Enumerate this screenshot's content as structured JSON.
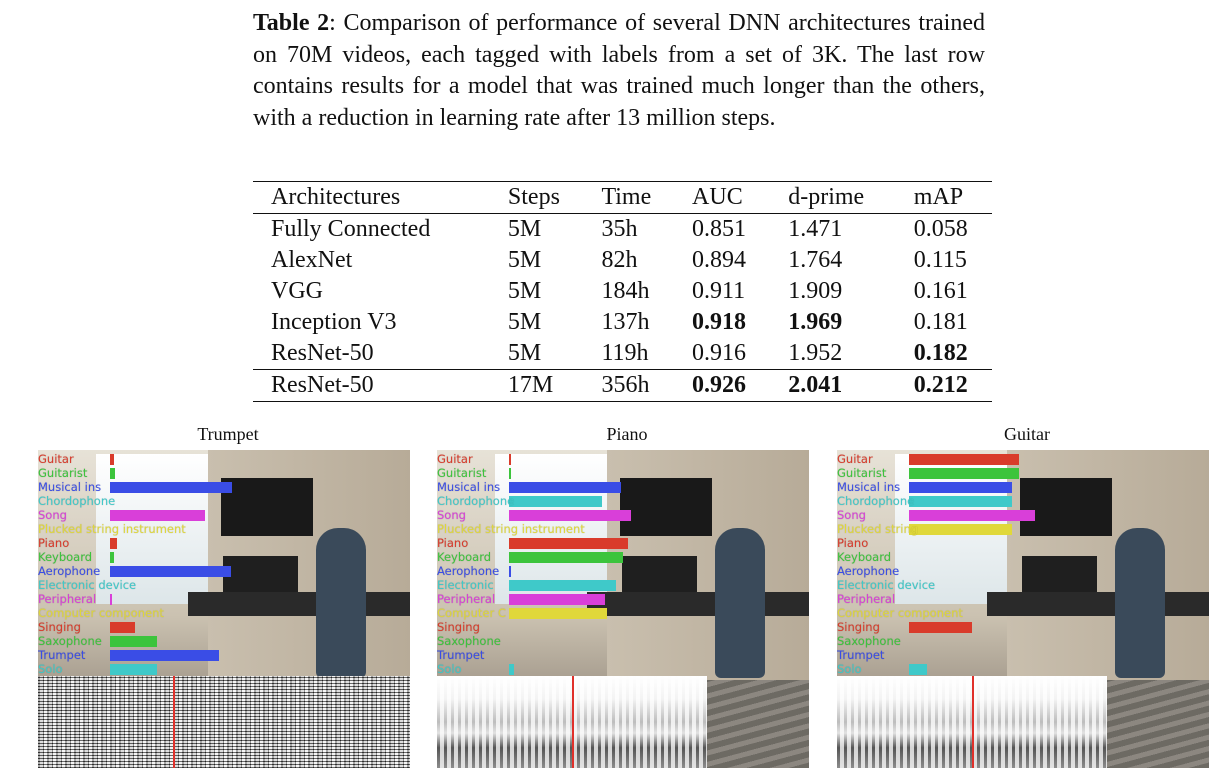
{
  "caption": {
    "label": "Table 2",
    "text": ": Comparison of performance of several DNN architectures trained on 70M videos, each tagged with labels from a set of 3K. The last row contains results for a model that was trained much longer than the others, with a reduction in learning rate after 13 million steps."
  },
  "table": {
    "headers": [
      "Architectures",
      "Steps",
      "Time",
      "AUC",
      "d-prime",
      "mAP"
    ],
    "rows": [
      [
        "Fully Connected",
        "5M",
        "35h",
        "0.851",
        "1.471",
        "0.058"
      ],
      [
        "AlexNet",
        "5M",
        "82h",
        "0.894",
        "1.764",
        "0.115"
      ],
      [
        "VGG",
        "5M",
        "184h",
        "0.911",
        "1.909",
        "0.161"
      ],
      [
        "Inception V3",
        "5M",
        "137h",
        "0.918",
        "1.969",
        "0.181"
      ],
      [
        "ResNet-50",
        "5M",
        "119h",
        "0.916",
        "1.952",
        "0.182"
      ]
    ],
    "final_row": [
      "ResNet-50",
      "17M",
      "356h",
      "0.926",
      "2.041",
      "0.212"
    ],
    "bold_cells": [
      "3-3",
      "3-4",
      "4-5",
      "5-3",
      "5-4",
      "5-5"
    ]
  },
  "label_colors": [
    "#d93b2b",
    "#3cc43c",
    "#3a4de6",
    "#3fc9c9",
    "#d93fd9",
    "#e0d83a",
    "#d93b2b",
    "#3cc43c",
    "#3a4de6",
    "#3fc9c9",
    "#d93fd9",
    "#e0d83a",
    "#d93b2b",
    "#3cc43c",
    "#3a4de6",
    "#3fc9c9"
  ],
  "panels": [
    {
      "title": "Trumpet",
      "spectrogram_style": "dense",
      "labels": [
        "Guitar",
        "Guitarist",
        "Musical ins",
        "Chordophone",
        "Song",
        "Plucked string instrument",
        "Piano",
        "Keyboard",
        "Aerophone",
        "Electronic device",
        "Peripheral",
        "Computer component",
        "Singing",
        "Saxophone",
        "Trumpet",
        "Solo"
      ],
      "scores": [
        0.02,
        0.03,
        0.7,
        0.0,
        0.54,
        0.0,
        0.04,
        0.02,
        0.69,
        0.0,
        0.01,
        0.0,
        0.14,
        0.27,
        0.62,
        0.27
      ]
    },
    {
      "title": "Piano",
      "spectrogram_style": "sparse",
      "labels": [
        "Guitar",
        "Guitarist",
        "Musical ins",
        "Chordophone",
        "Song",
        "Plucked string instrument",
        "Piano",
        "Keyboard",
        "Aerophone",
        "Electronic",
        "Peripheral",
        "Computer C",
        "Singing",
        "Saxophone",
        "Trumpet",
        "Solo"
      ],
      "scores": [
        0.01,
        0.01,
        0.64,
        0.53,
        0.7,
        0.0,
        0.68,
        0.65,
        0.01,
        0.61,
        0.55,
        0.56,
        0.0,
        0.0,
        0.0,
        0.03
      ]
    },
    {
      "title": "Guitar",
      "spectrogram_style": "sparse",
      "labels": [
        "Guitar",
        "Guitarist",
        "Musical ins",
        "Chordophone",
        "Song",
        "Plucked string",
        "Piano",
        "Keyboard",
        "Aerophone",
        "Electronic device",
        "Peripheral",
        "Computer component",
        "Singing",
        "Saxophone",
        "Trumpet",
        "Solo"
      ],
      "scores": [
        0.63,
        0.63,
        0.59,
        0.59,
        0.72,
        0.59,
        0.0,
        0.0,
        0.0,
        0.0,
        0.0,
        0.0,
        0.36,
        0.0,
        0.0,
        0.1
      ]
    }
  ]
}
